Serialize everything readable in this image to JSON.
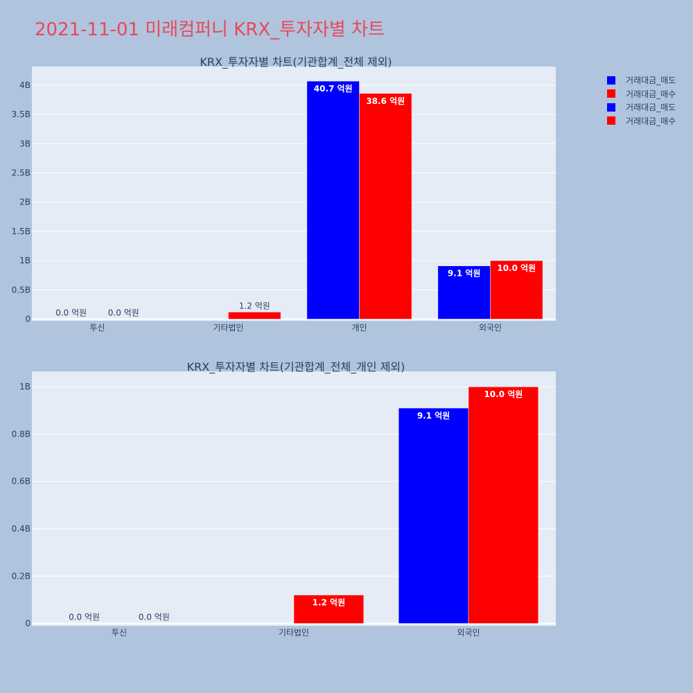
{
  "page_title": "2021-11-01 미래컴퍼니 KRX_투자자별 차트",
  "colors": {
    "sell": "#0000ff",
    "buy": "#ff0000",
    "background": "#b0c4de",
    "plot_bg": "#e5ecf6",
    "title": "#e8485a"
  },
  "legend": [
    {
      "label": "거래대금_매도",
      "color": "#0000ff"
    },
    {
      "label": "거래대금_매수",
      "color": "#ff0000"
    },
    {
      "label": "거래대금_매도",
      "color": "#0000ff"
    },
    {
      "label": "거래대금_매수",
      "color": "#ff0000"
    }
  ],
  "chart_data": [
    {
      "type": "bar",
      "title": "KRX_투자자별 차트(기관합계_전체 제외)",
      "categories": [
        "투신",
        "기타법인",
        "개인",
        "외국인"
      ],
      "series": [
        {
          "name": "거래대금_매도",
          "color": "#0000ff",
          "values": [
            0,
            0,
            4070000000,
            910000000
          ],
          "labels": [
            "0.0 억원",
            "",
            "40.7 억원",
            "9.1 억원"
          ]
        },
        {
          "name": "거래대금_매수",
          "color": "#ff0000",
          "values": [
            0,
            120000000,
            3860000000,
            1000000000
          ],
          "labels": [
            "0.0 억원",
            "1.2 억원",
            "38.6 억원",
            "10.0 억원"
          ]
        }
      ],
      "yticks": [
        {
          "value": 0,
          "label": "0"
        },
        {
          "value": 500000000,
          "label": "0.5B"
        },
        {
          "value": 1000000000,
          "label": "1B"
        },
        {
          "value": 1500000000,
          "label": "1.5B"
        },
        {
          "value": 2000000000,
          "label": "2B"
        },
        {
          "value": 2500000000,
          "label": "2.5B"
        },
        {
          "value": 3000000000,
          "label": "3B"
        },
        {
          "value": 3500000000,
          "label": "3.5B"
        },
        {
          "value": 4000000000,
          "label": "4B"
        }
      ],
      "ylim": [
        -30000000,
        4320000000
      ],
      "grid": true
    },
    {
      "type": "bar",
      "title": "KRX_투자자별 차트(기관합계_전체_개인 제외)",
      "categories": [
        "투신",
        "기타법인",
        "외국인"
      ],
      "series": [
        {
          "name": "거래대금_매도",
          "color": "#0000ff",
          "values": [
            0,
            0,
            910000000
          ],
          "labels": [
            "0.0 억원",
            "",
            "9.1 억원"
          ]
        },
        {
          "name": "거래대금_매수",
          "color": "#ff0000",
          "values": [
            0,
            120000000,
            1000000000
          ],
          "labels": [
            "0.0 억원",
            "1.2 억원",
            "10.0 억원"
          ]
        }
      ],
      "yticks": [
        {
          "value": 0,
          "label": "0"
        },
        {
          "value": 200000000,
          "label": "0.2B"
        },
        {
          "value": 400000000,
          "label": "0.4B"
        },
        {
          "value": 600000000,
          "label": "0.6B"
        },
        {
          "value": 800000000,
          "label": "0.8B"
        },
        {
          "value": 1000000000,
          "label": "1B"
        }
      ],
      "ylim": [
        -10000000,
        1065000000
      ],
      "grid": true
    }
  ]
}
